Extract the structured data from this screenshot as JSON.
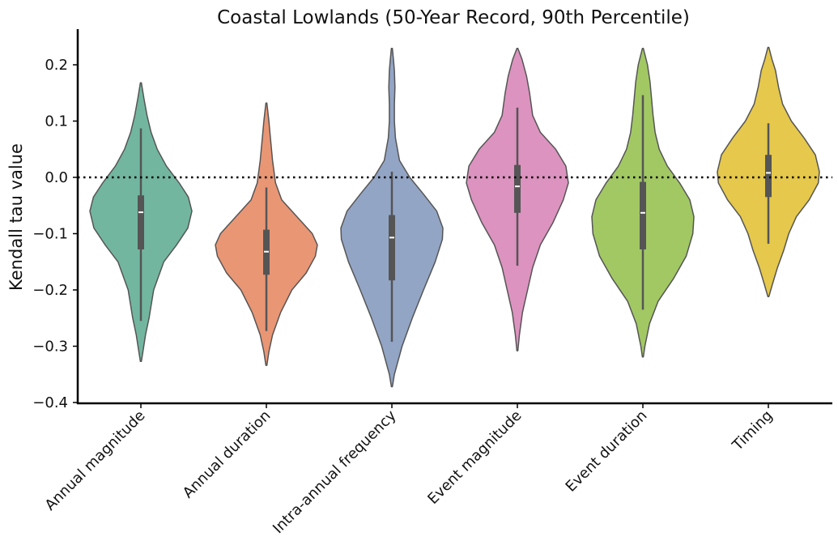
{
  "chart_data": {
    "type": "violin",
    "title": "Coastal Lowlands (50-Year Record, 90th Percentile)",
    "xlabel": "",
    "ylabel": "Kendall tau value",
    "ylim": [
      -0.4,
      0.26
    ],
    "yticks": [
      -0.4,
      -0.3,
      -0.2,
      -0.1,
      0.0,
      0.1,
      0.2
    ],
    "ytick_labels": [
      "−0.4",
      "−0.3",
      "−0.2",
      "−0.1",
      "0.0",
      "0.1",
      "0.2"
    ],
    "reference_line": {
      "y": 0.0,
      "style": "dotted",
      "color": "#000000"
    },
    "categories": [
      "Annual magnitude",
      "Annual duration",
      "Intra-annual frequency",
      "Event magnitude",
      "Event duration",
      "Timing"
    ],
    "violins": [
      {
        "category": "Annual magnitude",
        "color": "#72b6a0",
        "median": -0.062,
        "q1": -0.128,
        "q3": -0.032,
        "whisker_low": -0.255,
        "whisker_high": 0.087,
        "profile": [
          [
            -0.327,
            0.01
          ],
          [
            -0.31,
            0.04
          ],
          [
            -0.28,
            0.09
          ],
          [
            -0.25,
            0.16
          ],
          [
            -0.2,
            0.25
          ],
          [
            -0.15,
            0.45
          ],
          [
            -0.12,
            0.7
          ],
          [
            -0.09,
            0.92
          ],
          [
            -0.06,
            1.0
          ],
          [
            -0.035,
            0.93
          ],
          [
            -0.01,
            0.75
          ],
          [
            0.02,
            0.5
          ],
          [
            0.05,
            0.32
          ],
          [
            0.08,
            0.2
          ],
          [
            0.11,
            0.12
          ],
          [
            0.14,
            0.06
          ],
          [
            0.168,
            0.01
          ]
        ]
      },
      {
        "category": "Annual duration",
        "color": "#e99675",
        "median": -0.132,
        "q1": -0.173,
        "q3": -0.093,
        "whisker_low": -0.273,
        "whisker_high": -0.018,
        "profile": [
          [
            -0.334,
            0.01
          ],
          [
            -0.31,
            0.05
          ],
          [
            -0.28,
            0.12
          ],
          [
            -0.24,
            0.28
          ],
          [
            -0.2,
            0.5
          ],
          [
            -0.17,
            0.78
          ],
          [
            -0.14,
            0.96
          ],
          [
            -0.12,
            1.0
          ],
          [
            -0.1,
            0.9
          ],
          [
            -0.07,
            0.6
          ],
          [
            -0.04,
            0.3
          ],
          [
            -0.01,
            0.18
          ],
          [
            0.03,
            0.12
          ],
          [
            0.07,
            0.08
          ],
          [
            0.1,
            0.05
          ],
          [
            0.132,
            0.01
          ]
        ]
      },
      {
        "category": "Intra-annual frequency",
        "color": "#93a5c5",
        "median": -0.107,
        "q1": -0.183,
        "q3": -0.067,
        "whisker_low": -0.292,
        "whisker_high": 0.01,
        "profile": [
          [
            -0.372,
            0.01
          ],
          [
            -0.35,
            0.05
          ],
          [
            -0.3,
            0.2
          ],
          [
            -0.25,
            0.4
          ],
          [
            -0.2,
            0.62
          ],
          [
            -0.15,
            0.85
          ],
          [
            -0.11,
            0.99
          ],
          [
            -0.09,
            1.0
          ],
          [
            -0.06,
            0.88
          ],
          [
            -0.03,
            0.62
          ],
          [
            0.0,
            0.35
          ],
          [
            0.03,
            0.15
          ],
          [
            0.07,
            0.07
          ],
          [
            0.1,
            0.05
          ],
          [
            0.13,
            0.05
          ],
          [
            0.16,
            0.06
          ],
          [
            0.19,
            0.05
          ],
          [
            0.21,
            0.03
          ],
          [
            0.229,
            0.01
          ]
        ]
      },
      {
        "category": "Event magnitude",
        "color": "#dc93bf",
        "median": -0.016,
        "q1": -0.063,
        "q3": 0.022,
        "whisker_low": -0.157,
        "whisker_high": 0.124,
        "profile": [
          [
            -0.308,
            0.01
          ],
          [
            -0.28,
            0.04
          ],
          [
            -0.24,
            0.1
          ],
          [
            -0.2,
            0.2
          ],
          [
            -0.16,
            0.3
          ],
          [
            -0.12,
            0.45
          ],
          [
            -0.08,
            0.7
          ],
          [
            -0.04,
            0.9
          ],
          [
            -0.01,
            1.0
          ],
          [
            0.02,
            0.95
          ],
          [
            0.05,
            0.75
          ],
          [
            0.08,
            0.45
          ],
          [
            0.11,
            0.3
          ],
          [
            0.15,
            0.24
          ],
          [
            0.18,
            0.18
          ],
          [
            0.21,
            0.09
          ],
          [
            0.229,
            0.01
          ]
        ]
      },
      {
        "category": "Event duration",
        "color": "#a2c864",
        "median": -0.063,
        "q1": -0.128,
        "q3": -0.008,
        "whisker_low": -0.235,
        "whisker_high": 0.146,
        "profile": [
          [
            -0.319,
            0.01
          ],
          [
            -0.3,
            0.04
          ],
          [
            -0.26,
            0.13
          ],
          [
            -0.22,
            0.3
          ],
          [
            -0.18,
            0.6
          ],
          [
            -0.14,
            0.85
          ],
          [
            -0.1,
            0.98
          ],
          [
            -0.07,
            1.0
          ],
          [
            -0.04,
            0.92
          ],
          [
            -0.01,
            0.72
          ],
          [
            0.02,
            0.48
          ],
          [
            0.05,
            0.32
          ],
          [
            0.08,
            0.24
          ],
          [
            0.11,
            0.2
          ],
          [
            0.14,
            0.17
          ],
          [
            0.17,
            0.14
          ],
          [
            0.2,
            0.09
          ],
          [
            0.229,
            0.01
          ]
        ]
      },
      {
        "category": "Timing",
        "color": "#e5c84c",
        "median": 0.008,
        "q1": -0.035,
        "q3": 0.04,
        "whisker_low": -0.118,
        "whisker_high": 0.096,
        "profile": [
          [
            -0.212,
            0.01
          ],
          [
            -0.19,
            0.08
          ],
          [
            -0.16,
            0.18
          ],
          [
            -0.13,
            0.3
          ],
          [
            -0.1,
            0.4
          ],
          [
            -0.07,
            0.55
          ],
          [
            -0.04,
            0.8
          ],
          [
            -0.01,
            0.98
          ],
          [
            0.01,
            1.0
          ],
          [
            0.04,
            0.92
          ],
          [
            0.07,
            0.7
          ],
          [
            0.1,
            0.45
          ],
          [
            0.13,
            0.28
          ],
          [
            0.16,
            0.2
          ],
          [
            0.19,
            0.14
          ],
          [
            0.21,
            0.07
          ],
          [
            0.231,
            0.01
          ]
        ]
      }
    ]
  }
}
